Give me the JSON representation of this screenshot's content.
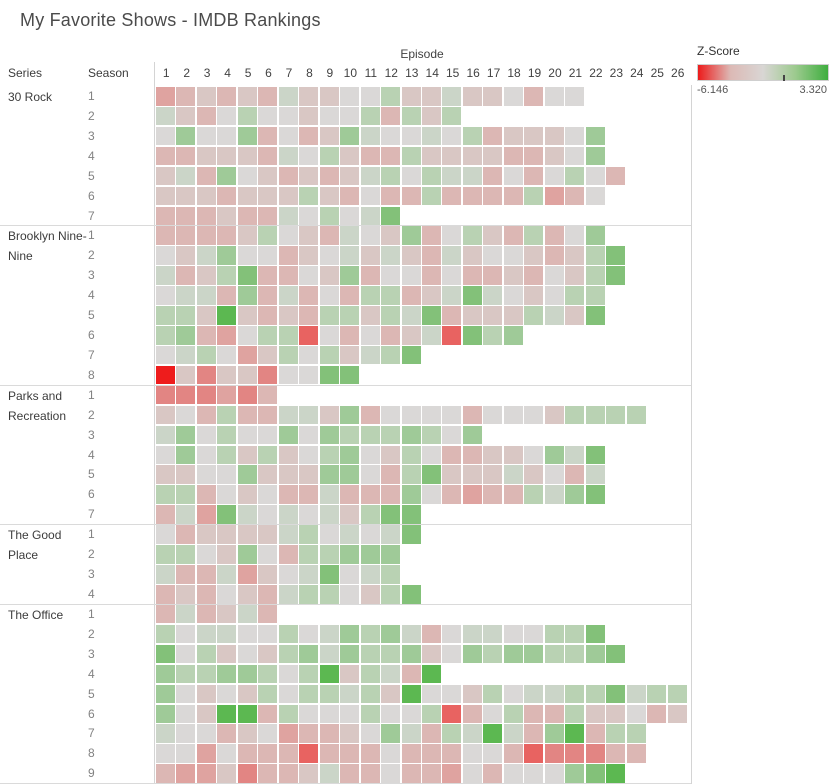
{
  "title": "My Favorite Shows - IMDB Rankings",
  "legend": {
    "title": "Z-Score",
    "min_label": "-6.146",
    "max_label": "3.320",
    "gradient": [
      "#ed1b1b",
      "#dcb9b5",
      "#d9d6d4",
      "#9cca8e",
      "#3fae3f"
    ]
  },
  "axis": {
    "column_title": "Episode",
    "row_header_series": "Series",
    "row_header_season": "Season",
    "episodes": [
      "1",
      "2",
      "3",
      "4",
      "5",
      "6",
      "7",
      "8",
      "9",
      "10",
      "11",
      "12",
      "13",
      "14",
      "15",
      "16",
      "17",
      "18",
      "19",
      "20",
      "21",
      "22",
      "23",
      "24",
      "25",
      "26"
    ]
  },
  "chart_data": {
    "type": "heatmap",
    "title": "My Favorite Shows - IMDB Rankings",
    "x_axis": "Episode",
    "y_axis": "Series / Season",
    "color_metric": "Z-Score",
    "color_domain": [
      -6.146,
      0,
      3.32
    ],
    "level_note": "levels are estimated color intensities; -6 = min Z-Score -6.146 (bright red), 0 = neutral gray, +5 = max Z-Score 3.320 (bright green)",
    "palette": {
      "-6": "#ee1c1c",
      "-5": "#e86361",
      "-4": "#e28583",
      "-3": "#dfa3a0",
      "-2": "#dcb7b4",
      "-1": "#d9c7c4",
      "0": "#dad8d7",
      "1": "#cbd5c8",
      "2": "#b9d2b3",
      "3": "#9fca98",
      "4": "#83c179",
      "5": "#5cb851"
    },
    "series": [
      {
        "name": "30 Rock",
        "seasons": [
          {
            "season": "1",
            "levels": [
              -3,
              -2,
              -1,
              -2,
              -1,
              -2,
              1,
              -1,
              -1,
              0,
              0,
              2,
              -1,
              -1,
              1,
              -1,
              -1,
              0,
              -2,
              0,
              0
            ]
          },
          {
            "season": "2",
            "levels": [
              1,
              -1,
              -2,
              0,
              2,
              0,
              0,
              -1,
              0,
              0,
              2,
              -2,
              2,
              -1,
              2
            ]
          },
          {
            "season": "3",
            "levels": [
              0,
              3,
              0,
              0,
              3,
              -2,
              0,
              -2,
              -1,
              3,
              1,
              0,
              0,
              1,
              0,
              2,
              -2,
              -1,
              -1,
              -1,
              0,
              3
            ]
          },
          {
            "season": "4",
            "levels": [
              -2,
              -2,
              -1,
              -1,
              -1,
              -2,
              1,
              0,
              2,
              -1,
              -2,
              -2,
              2,
              -1,
              -1,
              -1,
              -1,
              -2,
              -2,
              -1,
              0,
              3
            ]
          },
          {
            "season": "5",
            "levels": [
              -1,
              1,
              -2,
              3,
              0,
              -1,
              -2,
              -1,
              -2,
              -1,
              1,
              2,
              0,
              2,
              1,
              1,
              -2,
              0,
              -2,
              0,
              2,
              0,
              -2
            ]
          },
          {
            "season": "6",
            "levels": [
              -1,
              -1,
              -1,
              -2,
              -1,
              -1,
              -1,
              2,
              -1,
              -2,
              0,
              -2,
              -2,
              2,
              -2,
              -2,
              -2,
              -2,
              2,
              -3,
              -2,
              0
            ]
          },
          {
            "season": "7",
            "levels": [
              -2,
              -2,
              -2,
              -1,
              -2,
              -2,
              1,
              0,
              2,
              0,
              1,
              4
            ]
          }
        ]
      },
      {
        "name": "Brooklyn Nine-Nine",
        "seasons": [
          {
            "season": "1",
            "levels": [
              -2,
              -2,
              -2,
              -2,
              -1,
              2,
              0,
              -1,
              -2,
              1,
              0,
              -1,
              3,
              -2,
              0,
              2,
              -1,
              -2,
              2,
              -2,
              0,
              3
            ]
          },
          {
            "season": "2",
            "levels": [
              0,
              -1,
              1,
              3,
              0,
              0,
              -2,
              -1,
              0,
              1,
              -1,
              1,
              -1,
              -2,
              1,
              -1,
              0,
              0,
              -1,
              -2,
              -1,
              2,
              4
            ]
          },
          {
            "season": "3",
            "levels": [
              1,
              -2,
              -1,
              2,
              4,
              -2,
              -2,
              0,
              -1,
              3,
              -2,
              0,
              0,
              -2,
              0,
              -2,
              -2,
              -1,
              -2,
              0,
              -1,
              2,
              4
            ]
          },
          {
            "season": "4",
            "levels": [
              0,
              1,
              1,
              -2,
              3,
              -2,
              1,
              -2,
              0,
              -2,
              2,
              2,
              -2,
              -1,
              1,
              4,
              1,
              0,
              -1,
              0,
              2,
              2
            ]
          },
          {
            "season": "5",
            "levels": [
              2,
              2,
              -1,
              5,
              -1,
              -2,
              -1,
              -2,
              2,
              2,
              -1,
              2,
              1,
              4,
              -2,
              -1,
              -1,
              -1,
              2,
              1,
              -1,
              4
            ]
          },
          {
            "season": "6",
            "levels": [
              2,
              3,
              -2,
              -3,
              0,
              2,
              2,
              -5,
              0,
              -2,
              0,
              -2,
              -1,
              1,
              -5,
              4,
              2,
              3
            ]
          },
          {
            "season": "7",
            "levels": [
              0,
              1,
              2,
              0,
              -3,
              -1,
              2,
              0,
              2,
              -1,
              1,
              2,
              4
            ]
          },
          {
            "season": "8",
            "levels": [
              -6,
              -1,
              -4,
              -1,
              -1,
              -4,
              0,
              0,
              4,
              4
            ]
          }
        ]
      },
      {
        "name": "Parks and Recreation",
        "seasons": [
          {
            "season": "1",
            "levels": [
              -4,
              -4,
              -4,
              -3,
              -4,
              -2
            ]
          },
          {
            "season": "2",
            "levels": [
              -1,
              0,
              -2,
              2,
              -2,
              -2,
              1,
              1,
              -1,
              3,
              -2,
              0,
              0,
              0,
              0,
              -2,
              0,
              0,
              0,
              -1,
              2,
              2,
              2,
              2
            ]
          },
          {
            "season": "3",
            "levels": [
              1,
              3,
              0,
              2,
              0,
              0,
              3,
              0,
              3,
              2,
              2,
              2,
              3,
              2,
              0,
              3
            ]
          },
          {
            "season": "4",
            "levels": [
              0,
              3,
              0,
              2,
              -1,
              2,
              -1,
              0,
              2,
              3,
              0,
              -1,
              2,
              0,
              -2,
              -2,
              -1,
              -1,
              0,
              3,
              1,
              4
            ]
          },
          {
            "season": "5",
            "levels": [
              -1,
              -1,
              0,
              0,
              3,
              -1,
              -1,
              -1,
              3,
              3,
              0,
              -2,
              2,
              4,
              -1,
              -1,
              -1,
              1,
              -1,
              0,
              -2,
              1
            ]
          },
          {
            "season": "6",
            "levels": [
              2,
              2,
              -2,
              0,
              -1,
              0,
              -2,
              -2,
              1,
              -2,
              -2,
              -2,
              3,
              0,
              -2,
              -3,
              -2,
              -2,
              2,
              1,
              3,
              4
            ]
          },
          {
            "season": "7",
            "levels": [
              -2,
              1,
              -3,
              4,
              1,
              0,
              1,
              0,
              1,
              -1,
              2,
              4,
              4
            ]
          }
        ]
      },
      {
        "name": "The Good Place",
        "seasons": [
          {
            "season": "1",
            "levels": [
              0,
              -2,
              -1,
              -1,
              -1,
              -1,
              1,
              2,
              0,
              1,
              0,
              1,
              4
            ]
          },
          {
            "season": "2",
            "levels": [
              2,
              2,
              0,
              -1,
              3,
              0,
              -2,
              2,
              2,
              3,
              3,
              3
            ]
          },
          {
            "season": "3",
            "levels": [
              1,
              -2,
              -2,
              1,
              -3,
              -1,
              0,
              1,
              4,
              0,
              1,
              2
            ]
          },
          {
            "season": "4",
            "levels": [
              -2,
              -1,
              -2,
              0,
              -1,
              -2,
              1,
              2,
              2,
              0,
              -1,
              2,
              4
            ]
          }
        ]
      },
      {
        "name": "The Office",
        "seasons": [
          {
            "season": "1",
            "levels": [
              -2,
              1,
              -2,
              -1,
              1,
              -2
            ]
          },
          {
            "season": "2",
            "levels": [
              2,
              0,
              1,
              1,
              0,
              0,
              2,
              0,
              1,
              3,
              2,
              3,
              1,
              -2,
              0,
              1,
              1,
              0,
              0,
              2,
              2,
              4
            ]
          },
          {
            "season": "3",
            "levels": [
              4,
              0,
              2,
              -1,
              0,
              -1,
              2,
              3,
              1,
              3,
              2,
              2,
              3,
              -1,
              0,
              3,
              2,
              3,
              3,
              2,
              2,
              3,
              4
            ]
          },
          {
            "season": "4",
            "levels": [
              3,
              2,
              2,
              3,
              3,
              2,
              0,
              2,
              5,
              -1,
              2,
              1,
              -2,
              5
            ]
          },
          {
            "season": "5",
            "levels": [
              3,
              0,
              -1,
              0,
              -1,
              2,
              0,
              2,
              2,
              1,
              2,
              -1,
              5,
              0,
              0,
              -1,
              2,
              0,
              1,
              1,
              2,
              2,
              4,
              1,
              2,
              2
            ]
          },
          {
            "season": "6",
            "levels": [
              3,
              0,
              -1,
              5,
              5,
              -2,
              2,
              0,
              0,
              0,
              2,
              0,
              0,
              2,
              -5,
              -2,
              0,
              2,
              -2,
              -2,
              2,
              -1,
              -1,
              0,
              -2,
              -1
            ]
          },
          {
            "season": "7",
            "levels": [
              1,
              0,
              0,
              -2,
              -1,
              0,
              -3,
              -2,
              -2,
              -1,
              0,
              3,
              1,
              -2,
              2,
              1,
              5,
              1,
              -2,
              3,
              5,
              -2,
              2,
              2
            ]
          },
          {
            "season": "8",
            "levels": [
              0,
              0,
              -3,
              0,
              -2,
              -2,
              -2,
              -5,
              -2,
              -2,
              -2,
              0,
              -2,
              -2,
              -2,
              0,
              0,
              -2,
              -5,
              -4,
              -4,
              -4,
              -2,
              -2
            ]
          },
          {
            "season": "9",
            "levels": [
              -2,
              -3,
              -3,
              -1,
              -4,
              -2,
              -2,
              -1,
              1,
              -2,
              -2,
              0,
              -2,
              -2,
              -3,
              0,
              -2,
              0,
              0,
              0,
              3,
              4,
              5
            ]
          }
        ]
      }
    ]
  }
}
